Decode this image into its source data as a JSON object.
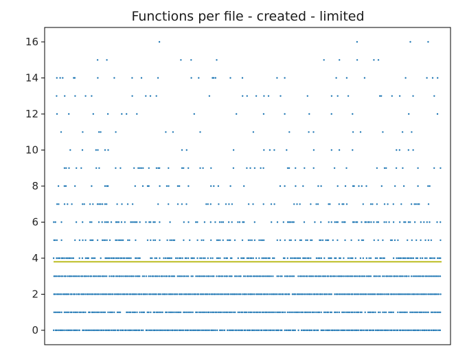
{
  "chart_data": {
    "type": "scatter",
    "title": "Functions per file - created - limited",
    "xlabel": "",
    "ylabel": "",
    "x_ticks_visible": false,
    "ylim": [
      -0.8,
      16.8
    ],
    "y_ticks": [
      0,
      2,
      4,
      6,
      8,
      10,
      12,
      14,
      16
    ],
    "grid": false,
    "legend": "none",
    "point_color": "#1f77b4",
    "mean_line": {
      "y": 3.8,
      "color": "#bcbd22"
    },
    "series": [
      {
        "values_by_level": [
          {
            "y": 0,
            "density": 0.97
          },
          {
            "y": 1,
            "density": 0.9
          },
          {
            "y": 2,
            "density": 0.99
          },
          {
            "y": 3,
            "density": 0.9
          },
          {
            "y": 4,
            "density": 0.7
          },
          {
            "y": 5,
            "density": 0.42
          },
          {
            "y": 6,
            "density": 0.35
          },
          {
            "y": 7,
            "density": 0.22
          },
          {
            "y": 8,
            "density": 0.17
          },
          {
            "y": 9,
            "density": 0.15
          },
          {
            "y": 10,
            "density": 0.07
          },
          {
            "y": 11,
            "density": 0.07
          },
          {
            "y": 12,
            "density": 0.05
          },
          {
            "y": 13,
            "density": 0.06
          },
          {
            "y": 14,
            "density": 0.09
          },
          {
            "y": 15,
            "density": 0.035
          },
          {
            "y": 16,
            "density": 0.02
          }
        ]
      }
    ]
  }
}
